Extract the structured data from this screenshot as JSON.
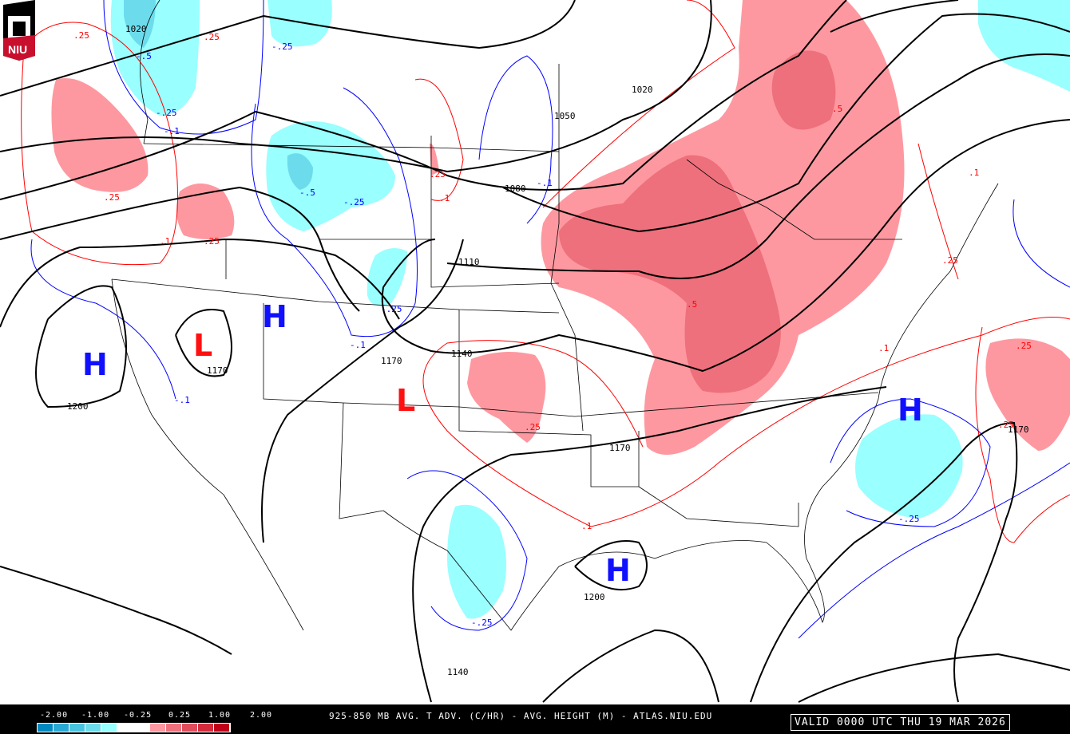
{
  "logo": {
    "text": "NIU"
  },
  "colors": {
    "warm_light": "#fe98a0",
    "warm_mid": "#ee707c",
    "cool_light": "#99ffff",
    "cool_mid": "#6cdcec",
    "high": "#1010ff",
    "low": "#ff1010",
    "height_contour": "#000000",
    "warm_contour": "#ff0000",
    "cool_contour": "#0000ff"
  },
  "scale": {
    "ticks": [
      "-2.00",
      "-1.00",
      "-0.25",
      "0.25",
      "1.00",
      "2.00"
    ],
    "colors": [
      "#0088c0",
      "#28a8d4",
      "#48c4e0",
      "#6cdcec",
      "#99ffff",
      "#ffffff",
      "#fe98a0",
      "#ee707c",
      "#e04c5c",
      "#d42a3c",
      "#c00018"
    ]
  },
  "caption": "925-850 MB AVG. T ADV. (C/HR) - AVG. HEIGHT (M) - ATLAS.NIU.EDU",
  "valid": "VALID 0000 UTC THU 19 MAR 2026",
  "centers": [
    {
      "type": "H",
      "label": "H"
    },
    {
      "type": "L",
      "label": "L"
    },
    {
      "type": "H",
      "label": "H"
    },
    {
      "type": "L",
      "label": "L"
    },
    {
      "type": "H",
      "label": "H"
    },
    {
      "type": "H",
      "label": "H"
    }
  ],
  "height_labels": [
    "1020",
    "1020",
    "1050",
    "1080",
    "1110",
    "1140",
    "1170",
    "1170",
    "1170",
    "1200",
    "1200",
    "1170",
    "1140"
  ],
  "tadv_labels": [
    ".5",
    ".25",
    ".25",
    ".25",
    ".1",
    ".25",
    ".1",
    ".25",
    ".1",
    ".5",
    ".1",
    ".25",
    ".25",
    ".1",
    ".25",
    ".25",
    "-.25",
    "-.5",
    "-.25",
    "-.5",
    "-.25",
    "-.1",
    "-.25",
    "-.1",
    "-.1",
    "-.25",
    "-.25",
    "-.1"
  ]
}
